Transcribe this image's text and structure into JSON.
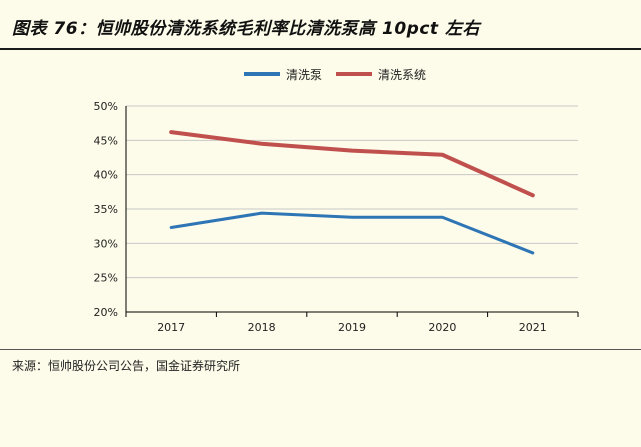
{
  "header": {
    "title": "图表 76：恒帅股份清洗系统毛利率比清洗泵高 10pct 左右"
  },
  "footer": {
    "source": "来源：恒帅股份公司公告，国金证券研究所"
  },
  "colors": {
    "pump": "#2e75b6",
    "system": "#c0504d",
    "grid": "#c8c8c8",
    "axis": "#000000"
  },
  "chart_data": {
    "type": "line",
    "title": "恒帅股份清洗系统毛利率比清洗泵高 10pct 左右",
    "xlabel": "",
    "ylabel": "",
    "categories": [
      "2017",
      "2018",
      "2019",
      "2020",
      "2021"
    ],
    "ylim": [
      0.2,
      0.5
    ],
    "yticks": [
      0.5,
      0.45,
      0.4,
      0.35,
      0.3,
      0.25,
      0.2
    ],
    "ytick_labels": [
      "50%",
      "45%",
      "40%",
      "35%",
      "30%",
      "25%",
      "20%"
    ],
    "grid": true,
    "legend_position": "top",
    "series": [
      {
        "name": "清洗泵",
        "color": "#2e75b6",
        "values": [
          0.323,
          0.344,
          0.338,
          0.338,
          0.286
        ]
      },
      {
        "name": "清洗系统",
        "color": "#c0504d",
        "values": [
          0.462,
          0.445,
          0.435,
          0.429,
          0.37
        ]
      }
    ]
  }
}
